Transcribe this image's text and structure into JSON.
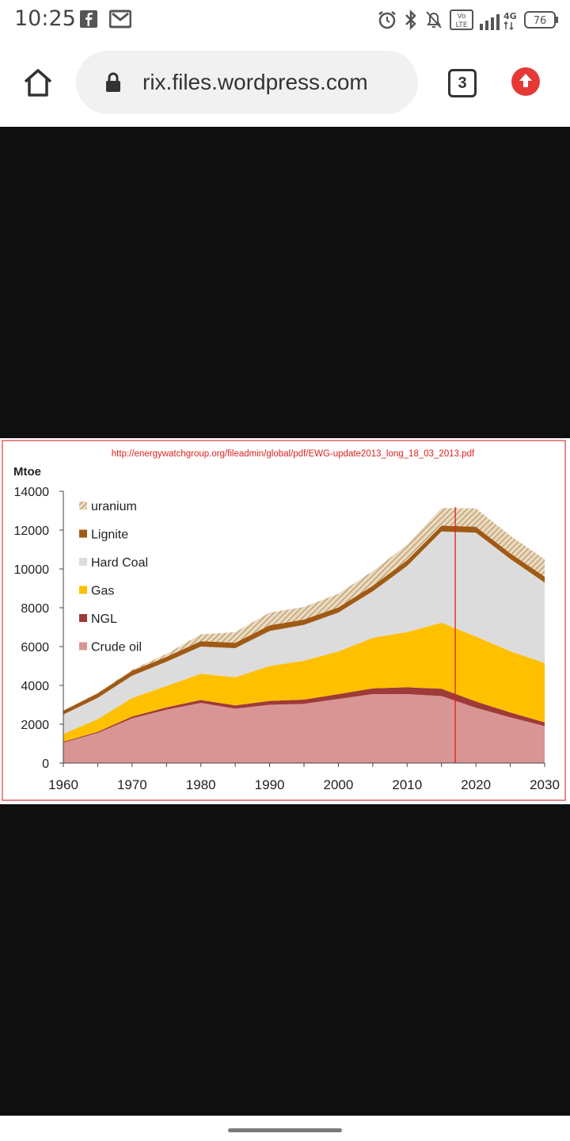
{
  "status_bar": {
    "time": "10:25",
    "battery": "76",
    "network": "4G",
    "icons": [
      "facebook-icon",
      "gmail-icon",
      "alarm-icon",
      "bluetooth-icon",
      "notifications-off-icon",
      "volte-icon",
      "signal-icon",
      "battery-icon"
    ]
  },
  "browser": {
    "url": "rix.files.wordpress.com",
    "tab_count": "3",
    "icons": [
      "home-icon",
      "lock-icon",
      "upload-icon"
    ],
    "accent_color": "#e53935"
  },
  "chart_data": {
    "type": "area",
    "source_url": "http://energywatchgroup.org/fileadmin/global/pdf/EWG-update2013_long_18_03_2013.pdf",
    "ylabel": "Mtoe",
    "xlim": [
      1960,
      2030
    ],
    "ylim": [
      0,
      14000
    ],
    "x_ticks": [
      "1960",
      "1970",
      "1980",
      "1990",
      "2000",
      "2010",
      "2020",
      "2030"
    ],
    "y_ticks": [
      "0",
      "2000",
      "4000",
      "6000",
      "8000",
      "10000",
      "12000",
      "14000"
    ],
    "marker_year": 2017,
    "legend_position": "top-left",
    "x": [
      1960,
      1965,
      1970,
      1975,
      1980,
      1985,
      1990,
      1995,
      2000,
      2005,
      2010,
      2015,
      2020,
      2025,
      2030
    ],
    "series": [
      {
        "name": "Crude oil",
        "color": "#d99594",
        "values": [
          1050,
          1550,
          2300,
          2750,
          3100,
          2800,
          3000,
          3050,
          3300,
          3550,
          3550,
          3450,
          2850,
          2350,
          1900
        ]
      },
      {
        "name": "NGL",
        "color": "#9e3a38",
        "values": [
          50,
          60,
          100,
          120,
          150,
          170,
          200,
          220,
          250,
          300,
          350,
          380,
          320,
          260,
          200
        ]
      },
      {
        "name": "Gas",
        "color": "#ffc000",
        "values": [
          400,
          650,
          950,
          1100,
          1350,
          1450,
          1800,
          2000,
          2200,
          2600,
          2850,
          3400,
          3350,
          3150,
          3050
        ]
      },
      {
        "name": "Hard Coal",
        "color": "#dcdcdc",
        "values": [
          1000,
          1100,
          1150,
          1250,
          1400,
          1500,
          1800,
          1850,
          2000,
          2400,
          3400,
          4700,
          5350,
          4750,
          4150
        ]
      },
      {
        "name": "Lignite",
        "color": "#a05a16",
        "values": [
          200,
          230,
          250,
          250,
          280,
          270,
          300,
          270,
          270,
          280,
          300,
          300,
          300,
          300,
          300
        ]
      },
      {
        "name": "uranium",
        "color": "#d2b48c",
        "values": [
          0,
          20,
          60,
          150,
          350,
          550,
          650,
          650,
          700,
          750,
          800,
          900,
          950,
          900,
          900
        ]
      }
    ]
  }
}
